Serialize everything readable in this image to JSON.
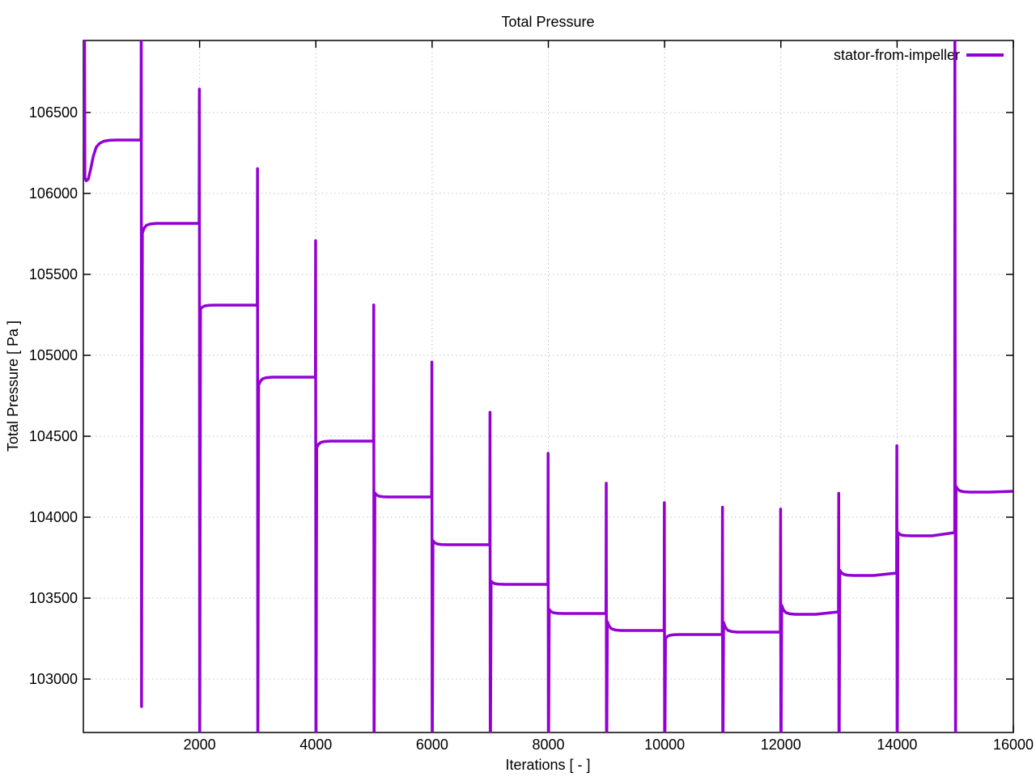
{
  "chart_data": {
    "type": "line",
    "title": "Total Pressure",
    "xlabel": "Iterations [ - ]",
    "ylabel": "Total Pressure [ Pa ]",
    "legend": [
      "stator-from-impeller"
    ],
    "legend_position": "top-right-inside",
    "grid": true,
    "grid_style": "dotted",
    "x_range": [
      0,
      16000
    ],
    "y_range": [
      102670,
      106945
    ],
    "x_ticks": [
      2000,
      4000,
      6000,
      8000,
      10000,
      12000,
      14000,
      16000
    ],
    "y_ticks": [
      103000,
      103500,
      104000,
      104500,
      105000,
      105500,
      106000,
      106500
    ],
    "series_color": "#9400d3",
    "grid_color": "#c0c0c0",
    "border_color": "#000000",
    "background_color": "#ffffff",
    "intro": [
      [
        18,
        "clip-top"
      ],
      [
        26,
        106098
      ],
      [
        48,
        106078
      ],
      [
        85,
        106088
      ],
      [
        125,
        106150
      ],
      [
        170,
        106228
      ],
      [
        220,
        106285
      ],
      [
        275,
        106308
      ],
      [
        345,
        106322
      ],
      [
        440,
        106328
      ],
      [
        560,
        106330
      ]
    ],
    "segments": [
      {
        "start": 0,
        "end": 1000,
        "plateau": 106330
      },
      {
        "start": 1000,
        "end": 2000,
        "plateau": 105815,
        "bump": 105755
      },
      {
        "start": 2000,
        "end": 3000,
        "plateau": 105310,
        "bump": 105285
      },
      {
        "start": 3000,
        "end": 4000,
        "plateau": 104865,
        "bump": 104815
      },
      {
        "start": 4000,
        "end": 5000,
        "plateau": 104470,
        "bump": 104430
      },
      {
        "start": 5000,
        "end": 6000,
        "plateau": 104125,
        "bump": 104150
      },
      {
        "start": 6000,
        "end": 7000,
        "plateau": 103830,
        "bump": 103855
      },
      {
        "start": 7000,
        "end": 8000,
        "plateau": 103585,
        "bump": 103605
      },
      {
        "start": 8000,
        "end": 9000,
        "plateau": 103405,
        "bump": 103430
      },
      {
        "start": 9000,
        "end": 10000,
        "plateau": 103300,
        "bump": 103355
      },
      {
        "start": 10000,
        "end": 11000,
        "plateau": 103275,
        "bump": 103250
      },
      {
        "start": 11000,
        "end": 12000,
        "plateau": 103290,
        "bump": 103350
      },
      {
        "start": 12000,
        "end": 13000,
        "plateau": 103400,
        "bump": 103455,
        "end_value": 103415
      },
      {
        "start": 13000,
        "end": 14000,
        "plateau": 103640,
        "bump": 103672,
        "end_value": 103655
      },
      {
        "start": 14000,
        "end": 15000,
        "plateau": 103885,
        "bump": 103905,
        "end_value": 103905
      },
      {
        "start": 15000,
        "end": 16000,
        "plateau": 104155,
        "bump": 104190,
        "end_value": 104160
      }
    ],
    "spikes": [
      {
        "x": 1000,
        "peak": "clip-top",
        "min": 102830
      },
      {
        "x": 2000,
        "peak": 106645,
        "min": "clip-bottom"
      },
      {
        "x": 3000,
        "peak": 106153,
        "min": "clip-bottom"
      },
      {
        "x": 4000,
        "peak": 105708,
        "min": "clip-bottom"
      },
      {
        "x": 5000,
        "peak": 105311,
        "min": "clip-bottom"
      },
      {
        "x": 6000,
        "peak": 104958,
        "min": "clip-bottom"
      },
      {
        "x": 7000,
        "peak": 104648,
        "min": "clip-bottom"
      },
      {
        "x": 8000,
        "peak": 104395,
        "min": "clip-bottom"
      },
      {
        "x": 9000,
        "peak": 104210,
        "min": "clip-bottom"
      },
      {
        "x": 10000,
        "peak": 104090,
        "min": "clip-bottom"
      },
      {
        "x": 11000,
        "peak": 104062,
        "min": "clip-bottom"
      },
      {
        "x": 12000,
        "peak": 104050,
        "min": "clip-bottom"
      },
      {
        "x": 13000,
        "peak": 104148,
        "min": "clip-bottom"
      },
      {
        "x": 14000,
        "peak": 104442,
        "min": "clip-bottom"
      },
      {
        "x": 15000,
        "peak": "clip-top",
        "min": "clip-bottom"
      }
    ]
  }
}
